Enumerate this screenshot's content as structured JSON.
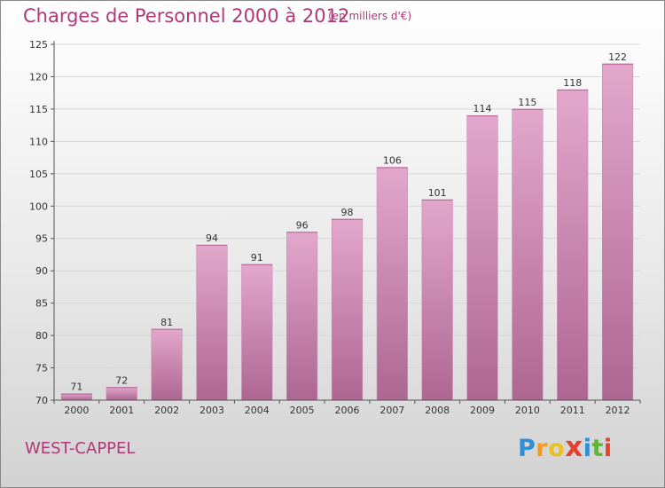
{
  "title": "Charges de Personnel 2000 à 2012",
  "subtitle": "(en milliers d'€)",
  "commune": "WEST-CAPPEL",
  "brand": "Proxiti",
  "colors": {
    "accent": "#b03878",
    "bar_top": "#e3a7cc",
    "bar_bottom": "#ad6692",
    "axis": "#555555",
    "grid": "#d6d6d6"
  },
  "chart_data": {
    "type": "bar",
    "title": "Charges de Personnel 2000 à 2012",
    "subtitle": "(en milliers d'€)",
    "xlabel": "",
    "ylabel": "",
    "categories": [
      "2000",
      "2001",
      "2002",
      "2003",
      "2004",
      "2005",
      "2006",
      "2007",
      "2008",
      "2009",
      "2010",
      "2011",
      "2012"
    ],
    "values": [
      71,
      72,
      81,
      94,
      91,
      96,
      98,
      106,
      101,
      114,
      115,
      118,
      122
    ],
    "ylim": [
      70,
      125
    ],
    "yticks": [
      70,
      75,
      80,
      85,
      90,
      95,
      100,
      105,
      110,
      115,
      120,
      125
    ],
    "grid": true,
    "data_labels": true
  }
}
